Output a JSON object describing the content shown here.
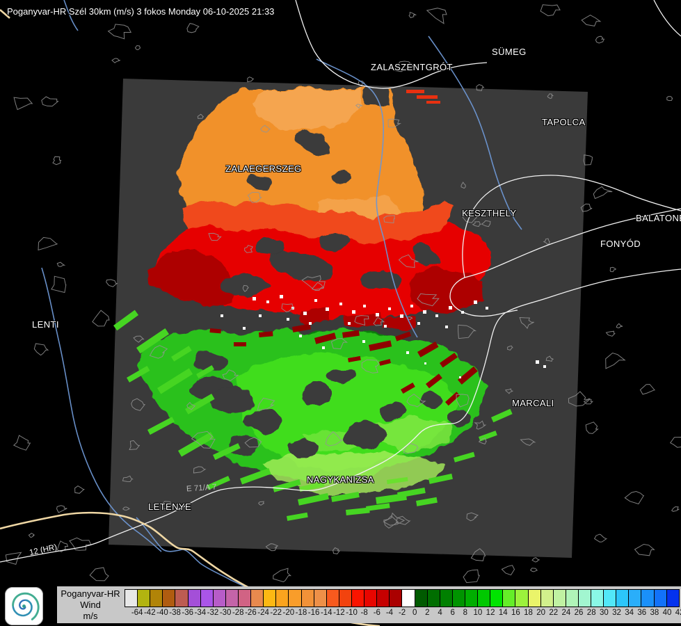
{
  "title": "Poganyvar-HR Szél 30km (m/s) 3 fokos Monday 06-10-2025 21:33",
  "cities": {
    "sumeg": "SÜMEG",
    "zalaszentgrot": "ZALASZENTGRÓT",
    "tapolca": "TAPOLCA",
    "zalaegerszeg": "ZALAEGERSZEG",
    "keszthely": "KESZTHELY",
    "balatonboglar": "BALATONBO",
    "fonyod": "FONYÓD",
    "lenti": "LENTI",
    "marcali": "MARCALI",
    "nagykanizsa": "NAGYKANIZSA",
    "letenye": "LETENYE"
  },
  "road_labels": {
    "hr_12": "12 (HR)",
    "e71_a7": "E 71/A 7"
  },
  "legend": {
    "product": "Poganyvar-HR",
    "parameter": "Wind",
    "unit": "m/s",
    "scale": [
      {
        "v": "-64",
        "c": "#e8e8e8"
      },
      {
        "v": "-42",
        "c": "#b2b410"
      },
      {
        "v": "-40",
        "c": "#b18408"
      },
      {
        "v": "-38",
        "c": "#b05c10"
      },
      {
        "v": "-36",
        "c": "#bd5c52"
      },
      {
        "v": "-34",
        "c": "#a44fd8"
      },
      {
        "v": "-32",
        "c": "#aa55e8"
      },
      {
        "v": "-30",
        "c": "#b75cc8"
      },
      {
        "v": "-28",
        "c": "#c464a8"
      },
      {
        "v": "-26",
        "c": "#d16384"
      },
      {
        "v": "-24",
        "c": "#e8894e"
      },
      {
        "v": "-22",
        "c": "#fdb813"
      },
      {
        "v": "-20",
        "c": "#fba41e"
      },
      {
        "v": "-18",
        "c": "#f99d2a"
      },
      {
        "v": "-16",
        "c": "#f29238"
      },
      {
        "v": "-14",
        "c": "#ee9048"
      },
      {
        "v": "-12",
        "c": "#f85a1e"
      },
      {
        "v": "-10",
        "c": "#f2430e"
      },
      {
        "v": "-8",
        "c": "#fa1400"
      },
      {
        "v": "-6",
        "c": "#e80600"
      },
      {
        "v": "-4",
        "c": "#c60000"
      },
      {
        "v": "-2",
        "c": "#aa0000"
      },
      {
        "v": "0",
        "c": "#ffffff"
      },
      {
        "v": "2",
        "c": "#005a00"
      },
      {
        "v": "4",
        "c": "#006e00"
      },
      {
        "v": "6",
        "c": "#008000"
      },
      {
        "v": "8",
        "c": "#009400"
      },
      {
        "v": "10",
        "c": "#00ae00"
      },
      {
        "v": "12",
        "c": "#00c800"
      },
      {
        "v": "14",
        "c": "#00e400"
      },
      {
        "v": "16",
        "c": "#64ee28"
      },
      {
        "v": "18",
        "c": "#9cf23c"
      },
      {
        "v": "20",
        "c": "#eaf46a"
      },
      {
        "v": "22",
        "c": "#d2f08c"
      },
      {
        "v": "24",
        "c": "#c0f2a2"
      },
      {
        "v": "26",
        "c": "#b0f4b8"
      },
      {
        "v": "28",
        "c": "#a2f6d0"
      },
      {
        "v": "30",
        "c": "#8af8e6"
      },
      {
        "v": "32",
        "c": "#52e8f8"
      },
      {
        "v": "34",
        "c": "#2cc6fa"
      },
      {
        "v": "36",
        "c": "#2aaefa"
      },
      {
        "v": "38",
        "c": "#1a90fa"
      },
      {
        "v": "40",
        "c": "#1272fa"
      },
      {
        "v": "42",
        "c": "#0432ee"
      }
    ]
  },
  "colors": {
    "radar_overlay": "#3a3a3a",
    "orange": "#f1912c",
    "orange_light": "#f6ae5e",
    "red_orange": "#f0481a",
    "red": "#e60505",
    "dark_red": "#ad0202",
    "green_dark": "#0c7c0c",
    "green": "#2bc11b",
    "green_bright": "#41e01f",
    "green_pale": "#a6ee5a",
    "green_pale2": "#8fe949",
    "river": "#6d96d2",
    "road": "#f2f2f2",
    "border_hr": "#efd7a4",
    "village_outline": "#949494"
  }
}
